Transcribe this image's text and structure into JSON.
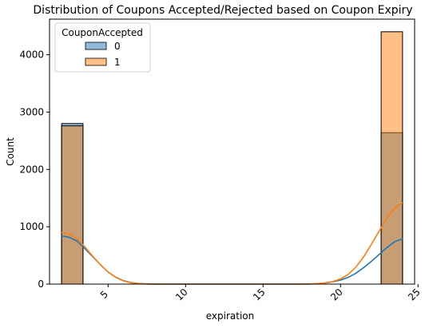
{
  "chart_data": {
    "type": "histogram",
    "title": "Distribution of Coupons Accepted/Rejected based on Coupon Expiry",
    "xlabel": "expiration",
    "ylabel": "Count",
    "xlim": [
      1.22,
      24.78
    ],
    "ylim": [
      0,
      4620
    ],
    "xticks": [
      5,
      10,
      15,
      20,
      25
    ],
    "yticks": [
      0,
      1000,
      2000,
      3000,
      4000
    ],
    "grid": false,
    "legend": {
      "title": "CouponAccepted",
      "placement": "top-left",
      "entries": [
        "0",
        "1"
      ]
    },
    "stacking": "layer",
    "series": [
      {
        "name": "0",
        "color": "#1f77b4",
        "bars": [
          {
            "x0": 2.0,
            "x1": 3.38,
            "count": 2800
          },
          {
            "x0": 22.62,
            "x1": 24.0,
            "count": 2640
          }
        ],
        "kde": [
          [
            2.0,
            840
          ],
          [
            2.5,
            815
          ],
          [
            3.0,
            750
          ],
          [
            3.5,
            620
          ],
          [
            4.0,
            480
          ],
          [
            4.5,
            340
          ],
          [
            5.0,
            210
          ],
          [
            5.5,
            120
          ],
          [
            6.0,
            60
          ],
          [
            6.5,
            25
          ],
          [
            7.0,
            10
          ],
          [
            7.5,
            4
          ],
          [
            8.0,
            1
          ],
          [
            9.0,
            0
          ],
          [
            17.0,
            0
          ],
          [
            18.0,
            3
          ],
          [
            18.5,
            8
          ],
          [
            19.0,
            20
          ],
          [
            19.5,
            40
          ],
          [
            20.0,
            70
          ],
          [
            20.5,
            120
          ],
          [
            21.0,
            190
          ],
          [
            21.5,
            290
          ],
          [
            22.0,
            400
          ],
          [
            22.5,
            520
          ],
          [
            23.0,
            640
          ],
          [
            23.5,
            740
          ],
          [
            24.0,
            790
          ]
        ]
      },
      {
        "name": "1",
        "color": "#ff7f0e",
        "bars": [
          {
            "x0": 2.0,
            "x1": 3.38,
            "count": 2760
          },
          {
            "x0": 22.62,
            "x1": 24.0,
            "count": 4400
          }
        ],
        "kde": [
          [
            2.0,
            900
          ],
          [
            2.5,
            870
          ],
          [
            3.0,
            790
          ],
          [
            3.5,
            650
          ],
          [
            4.0,
            490
          ],
          [
            4.5,
            340
          ],
          [
            5.0,
            210
          ],
          [
            5.5,
            115
          ],
          [
            6.0,
            55
          ],
          [
            6.5,
            22
          ],
          [
            7.0,
            8
          ],
          [
            7.5,
            3
          ],
          [
            8.0,
            1
          ],
          [
            9.0,
            0
          ],
          [
            17.0,
            0
          ],
          [
            18.0,
            3
          ],
          [
            18.5,
            8
          ],
          [
            19.0,
            20
          ],
          [
            19.5,
            45
          ],
          [
            20.0,
            90
          ],
          [
            20.5,
            170
          ],
          [
            21.0,
            300
          ],
          [
            21.5,
            480
          ],
          [
            22.0,
            700
          ],
          [
            22.5,
            930
          ],
          [
            23.0,
            1150
          ],
          [
            23.5,
            1330
          ],
          [
            24.0,
            1420
          ]
        ]
      }
    ]
  }
}
